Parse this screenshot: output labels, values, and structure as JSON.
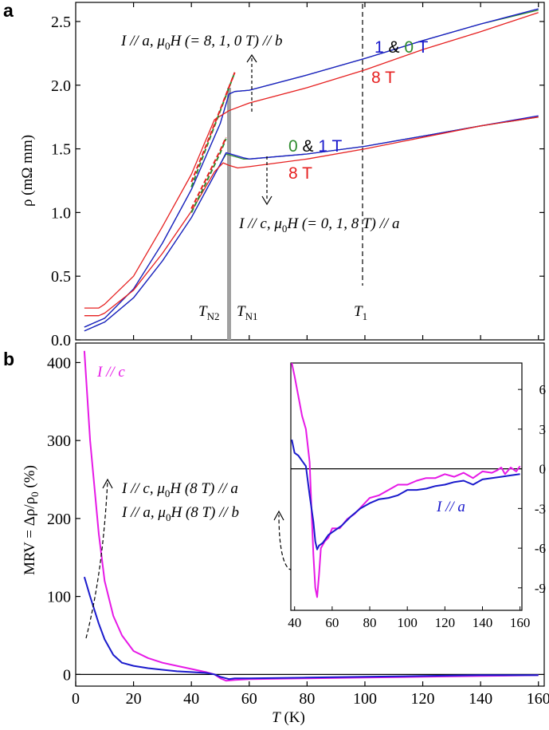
{
  "chart_data": [
    {
      "panel": "a",
      "type": "line",
      "xlabel": "",
      "ylabel": "ρ (mΩ mm)",
      "xlim": [
        0,
        162
      ],
      "ylim": [
        0.0,
        2.65
      ],
      "xticks": [
        20,
        40,
        60,
        80,
        100,
        120,
        140,
        160
      ],
      "yticks": [
        0.0,
        0.5,
        1.0,
        1.5,
        2.0,
        2.5
      ],
      "ytick_labels": [
        "0.0",
        "0.5",
        "1.0",
        "1.5",
        "2.0",
        "2.5"
      ],
      "markers": {
        "TN": 54,
        "T1": 100
      },
      "marker_labels": {
        "TN2": "T",
        "TN2_sub": "N2",
        "TN1": "T",
        "TN1_sub": "N1",
        "T1": "T",
        "T1_sub": "1"
      },
      "annotations": {
        "upper_prefix": "I // a, ",
        "upper_mu": "μ",
        "upper_sub": "0",
        "upper_suffix": "H (= 8, 1, 0 T) // b",
        "lower_prefix": "I // c, ",
        "lower_mu": "μ",
        "lower_sub": "0",
        "lower_suffix": "H (= 0, 1, 8 T) // a",
        "label_1": "1",
        "label_amp": " & ",
        "label_0": "0",
        "label_T": " T",
        "label_8T": "8 T"
      },
      "colors": {
        "0T": "#2e8b2e",
        "1T": "#1a1acc",
        "8T": "#e62020",
        "axis": "#000000",
        "band": "#a0a0a0"
      },
      "series": [
        {
          "name": "I//a 0 T",
          "color": "#2e8b2e",
          "x": [
            3,
            10,
            20,
            30,
            40,
            50,
            53,
            55,
            60,
            80,
            100,
            120,
            140,
            160
          ],
          "y": [
            0.1,
            0.17,
            0.4,
            0.76,
            1.18,
            1.7,
            1.93,
            1.95,
            1.96,
            2.08,
            2.21,
            2.35,
            2.48,
            2.59
          ]
        },
        {
          "name": "I//a 1 T",
          "color": "#1a1acc",
          "x": [
            3,
            10,
            20,
            30,
            40,
            50,
            53,
            55,
            60,
            80,
            100,
            120,
            140,
            160
          ],
          "y": [
            0.1,
            0.17,
            0.4,
            0.76,
            1.18,
            1.7,
            1.93,
            1.95,
            1.96,
            2.08,
            2.21,
            2.35,
            2.48,
            2.6
          ]
        },
        {
          "name": "I//a 8 T",
          "color": "#e62020",
          "x": [
            3,
            8,
            10,
            20,
            30,
            40,
            48,
            53,
            60,
            80,
            100,
            120,
            140,
            160
          ],
          "y": [
            0.25,
            0.25,
            0.28,
            0.5,
            0.89,
            1.3,
            1.73,
            1.8,
            1.86,
            1.98,
            2.12,
            2.28,
            2.42,
            2.57
          ]
        },
        {
          "name": "I//c 0 T",
          "color": "#2e8b2e",
          "x": [
            3,
            10,
            20,
            30,
            40,
            50,
            52,
            55,
            58,
            60,
            80,
            100,
            120,
            140,
            160
          ],
          "y": [
            0.07,
            0.14,
            0.33,
            0.62,
            0.96,
            1.38,
            1.46,
            1.44,
            1.42,
            1.42,
            1.46,
            1.52,
            1.6,
            1.68,
            1.75
          ]
        },
        {
          "name": "I//c 1 T",
          "color": "#1a1acc",
          "x": [
            3,
            10,
            20,
            30,
            40,
            50,
            52,
            55,
            58,
            60,
            80,
            100,
            120,
            140,
            160
          ],
          "y": [
            0.07,
            0.14,
            0.33,
            0.62,
            0.96,
            1.38,
            1.47,
            1.45,
            1.43,
            1.42,
            1.46,
            1.52,
            1.6,
            1.68,
            1.76
          ]
        },
        {
          "name": "I//c 8 T",
          "color": "#e62020",
          "x": [
            3,
            8,
            10,
            20,
            30,
            40,
            48,
            51,
            53,
            56,
            60,
            80,
            100,
            120,
            140,
            160
          ],
          "y": [
            0.19,
            0.19,
            0.21,
            0.39,
            0.68,
            1.01,
            1.32,
            1.39,
            1.37,
            1.35,
            1.36,
            1.42,
            1.5,
            1.59,
            1.68,
            1.75
          ]
        },
        {
          "name": "fit a 0/1 T",
          "color": "#2e8b2e",
          "dashed": true,
          "x": [
            40,
            45,
            50,
            55
          ],
          "y": [
            1.2,
            1.5,
            1.8,
            2.1
          ]
        },
        {
          "name": "fit a 8 T",
          "color": "#e62020",
          "dashed": true,
          "x": [
            40,
            45,
            50,
            55
          ],
          "y": [
            1.24,
            1.52,
            1.81,
            2.1
          ]
        },
        {
          "name": "fit c 0/1 T",
          "color": "#2e8b2e",
          "dashed": true,
          "x": [
            40,
            45,
            50,
            52
          ],
          "y": [
            1.0,
            1.23,
            1.47,
            1.58
          ]
        },
        {
          "name": "fit c 8 T",
          "color": "#e62020",
          "dashed": true,
          "x": [
            40,
            45,
            50,
            52
          ],
          "y": [
            1.03,
            1.26,
            1.49,
            1.59
          ]
        }
      ]
    },
    {
      "panel": "b",
      "type": "line",
      "xlabel": "T (K)",
      "xlabel_var": "T",
      "xlabel_unit": " (K)",
      "ylabel": "MRV = Δρ/ρ0 (%)",
      "ylabel_main": "MRV = Δρ/ρ",
      "ylabel_sub": "0",
      "ylabel_unit": " (%)",
      "xlim": [
        0,
        162
      ],
      "ylim": [
        -15,
        425
      ],
      "xticks": [
        0,
        20,
        40,
        60,
        80,
        100,
        120,
        140,
        160
      ],
      "yticks": [
        0,
        100,
        200,
        300,
        400
      ],
      "legend_c": "I // c",
      "annotation_c_prefix": "I // c, ",
      "annotation_c_mu": "μ",
      "annotation_c_sub": "0",
      "annotation_c_suffix": "H (8 T) // a",
      "annotation_a_prefix": "I // a, ",
      "annotation_a_mu": "μ",
      "annotation_a_sub": "0",
      "annotation_a_suffix": "H (8 T) // b",
      "series": [
        {
          "name": "I // c",
          "color": "#e619e6",
          "x": [
            3,
            5,
            8,
            10,
            13,
            16,
            20,
            25,
            30,
            35,
            40,
            45,
            48,
            50,
            52,
            55,
            60,
            80,
            100,
            120,
            140,
            160
          ],
          "y": [
            415,
            300,
            180,
            120,
            75,
            50,
            30,
            21,
            15,
            11,
            7,
            3,
            0,
            -5,
            -8,
            -7,
            -6,
            -5,
            -4,
            -3,
            -2,
            -1
          ]
        },
        {
          "name": "I // a",
          "color": "#1a1acc",
          "x": [
            3,
            5,
            8,
            10,
            13,
            16,
            20,
            25,
            30,
            35,
            40,
            45,
            48,
            50,
            53,
            55,
            60,
            80,
            100,
            120,
            140,
            160
          ],
          "y": [
            125,
            100,
            65,
            45,
            25,
            15,
            11,
            8,
            6,
            4,
            3,
            2,
            0,
            -3,
            -6,
            -5,
            -5,
            -4,
            -3,
            -2,
            -1,
            -1
          ]
        }
      ],
      "inset": {
        "type": "line",
        "xlim": [
          38,
          161
        ],
        "ylim": [
          -10.7,
          8.0
        ],
        "xticks": [
          40,
          60,
          80,
          100,
          120,
          140,
          160
        ],
        "yticks": [
          -9,
          -6,
          -3,
          0,
          3,
          6
        ],
        "ytick_labels": [
          "-9",
          "-6",
          "-3",
          "0",
          "3",
          "6"
        ],
        "legend_a": "I // a",
        "series": [
          {
            "name": "I // c",
            "color": "#e619e6",
            "x": [
              38.5,
              40,
              42,
              44,
              46,
              48,
              49,
              50,
              51,
              52,
              53,
              54,
              56,
              58,
              60,
              64,
              68,
              72,
              76,
              80,
              85,
              90,
              95,
              100,
              105,
              110,
              115,
              120,
              125,
              130,
              135,
              140,
              145,
              148,
              150,
              152,
              155,
              158,
              160
            ],
            "y": [
              8,
              7,
              5.5,
              4,
              3,
              0.5,
              -3,
              -6.5,
              -9,
              -9.7,
              -8,
              -6,
              -5.5,
              -5.2,
              -4.5,
              -4.5,
              -3.8,
              -3.4,
              -2.8,
              -2.2,
              -2.0,
              -1.6,
              -1.2,
              -1.2,
              -0.9,
              -0.7,
              -0.7,
              -0.4,
              -0.6,
              -0.3,
              -0.7,
              -0.2,
              -0.3,
              -0.1,
              0.1,
              -0.4,
              0.1,
              -0.2,
              0.2
            ]
          },
          {
            "name": "I // a",
            "color": "#1a1acc",
            "x": [
              38.5,
              40,
              42,
              44,
              46,
              48,
              50,
              51,
              52,
              53,
              55,
              58,
              60,
              65,
              70,
              75,
              80,
              85,
              90,
              95,
              100,
              105,
              110,
              115,
              120,
              125,
              130,
              135,
              140,
              145,
              150,
              155,
              160
            ],
            "y": [
              2.2,
              1.2,
              1.0,
              0.6,
              0.2,
              -2,
              -4,
              -5.5,
              -6.1,
              -5.8,
              -5.6,
              -5.0,
              -4.8,
              -4.3,
              -3.6,
              -3.0,
              -2.6,
              -2.3,
              -2.2,
              -2.0,
              -1.6,
              -1.6,
              -1.5,
              -1.3,
              -1.2,
              -1.0,
              -0.9,
              -1.2,
              -0.8,
              -0.7,
              -0.6,
              -0.5,
              -0.4
            ]
          }
        ]
      }
    }
  ]
}
